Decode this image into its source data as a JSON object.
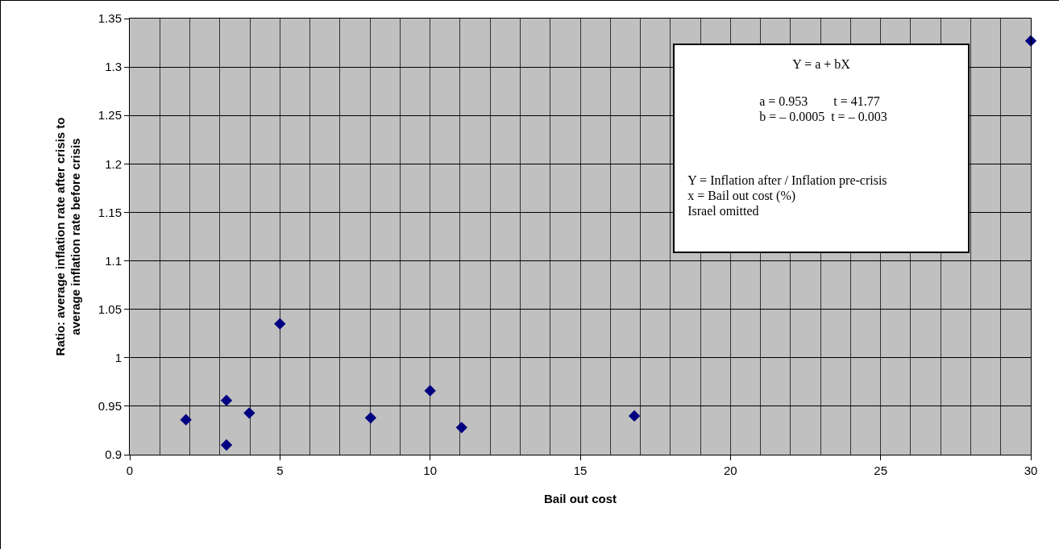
{
  "chart_data": {
    "type": "scatter",
    "xlabel": "Bail out cost",
    "ylabel": "Ratio: average inflation rate after crisis to average inflation rate before crisis",
    "x": [
      1.87,
      3.22,
      3.22,
      3.98,
      5.0,
      8.02,
      10.0,
      11.05,
      16.8,
      30
    ],
    "series": [
      {
        "color": "#000080",
        "values": [
          0.936,
          0.956,
          0.91,
          0.943,
          1.035,
          0.938,
          0.966,
          0.928,
          0.94,
          1.327
        ]
      }
    ],
    "xlim": [
      0,
      30
    ],
    "xticks": [
      0,
      5,
      10,
      15,
      20,
      25,
      30
    ],
    "ylim": [
      0.9,
      1.35
    ],
    "yticks": [
      0.9,
      0.95,
      1,
      1.05,
      1.1,
      1.15,
      1.2,
      1.25,
      1.3,
      1.35
    ],
    "grid": true,
    "marker": "diamond",
    "annotations": [
      "Y = a + bX",
      "a = 0.953        t = 41.77\nb = – 0.0005  t = – 0.003",
      "Y = Inflation after / Inflation pre-crisis\nx = Bail out cost (%)\nIsrael omitted"
    ]
  }
}
